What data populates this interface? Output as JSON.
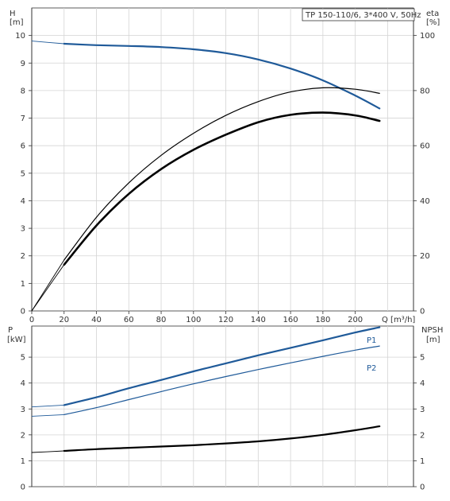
{
  "chart_data": [
    {
      "type": "line",
      "title": "TP 150-110/6, 3*400 V, 50Hz",
      "xlabel": "Q [m³/h]",
      "xlim": [
        0,
        236
      ],
      "xticks": [
        0,
        20,
        40,
        60,
        80,
        100,
        120,
        140,
        160,
        180,
        200
      ],
      "left_axis": {
        "label_top": "H",
        "label_unit": "[m]",
        "lim": [
          0,
          11
        ],
        "ticks": [
          0,
          1,
          2,
          3,
          4,
          5,
          6,
          7,
          8,
          9,
          10
        ]
      },
      "right_axis": {
        "label_top": "eta",
        "label_unit": "[%]",
        "lim": [
          0,
          110
        ],
        "ticks": [
          0,
          20,
          40,
          60,
          80,
          100
        ]
      },
      "grid": true,
      "series": [
        {
          "axis": "left",
          "color": "#1f5a99",
          "width": 2.2,
          "x": [
            0,
            20,
            40,
            60,
            80,
            100,
            120,
            140,
            160,
            180,
            200,
            215
          ],
          "y": [
            9.8,
            9.7,
            9.65,
            9.62,
            9.58,
            9.5,
            9.36,
            9.13,
            8.8,
            8.37,
            7.82,
            7.35
          ]
        },
        {
          "axis": "right",
          "color": "#000000",
          "width": 1.2,
          "x": [
            0,
            20,
            40,
            60,
            80,
            100,
            120,
            140,
            160,
            180,
            200,
            215
          ],
          "y": [
            0,
            18.5,
            34,
            46.5,
            56.5,
            64.5,
            71,
            76,
            79.5,
            81,
            80.5,
            79
          ]
        },
        {
          "axis": "right",
          "color": "#000000",
          "width": 2.6,
          "x": [
            0,
            20,
            40,
            60,
            80,
            100,
            120,
            140,
            160,
            180,
            200,
            215
          ],
          "y": [
            0,
            16.8,
            31,
            42.5,
            51.5,
            58.5,
            64,
            68.5,
            71.2,
            72,
            71,
            69
          ]
        }
      ]
    },
    {
      "type": "line",
      "xlim": [
        0,
        236
      ],
      "left_axis": {
        "label_top": "P",
        "label_unit": "[kW]",
        "lim": [
          0,
          6.2
        ],
        "ticks": [
          0,
          1,
          2,
          3,
          4,
          5
        ]
      },
      "right_axis": {
        "label_top": "NPSH",
        "label_unit": "[m]",
        "lim": [
          0,
          6.2
        ],
        "ticks": [
          0,
          1,
          2,
          3,
          4,
          5
        ]
      },
      "grid": true,
      "series": [
        {
          "name": "P1",
          "axis": "left",
          "color": "#1f5a99",
          "width": 2.2,
          "x": [
            0,
            20,
            40,
            60,
            80,
            100,
            120,
            140,
            160,
            180,
            200,
            215
          ],
          "y": [
            3.08,
            3.15,
            3.45,
            3.8,
            4.12,
            4.45,
            4.76,
            5.07,
            5.36,
            5.65,
            5.95,
            6.15
          ]
        },
        {
          "name": "P2",
          "axis": "left",
          "color": "#1f5a99",
          "width": 1.2,
          "x": [
            0,
            20,
            40,
            60,
            80,
            100,
            120,
            140,
            160,
            180,
            200,
            215
          ],
          "y": [
            2.72,
            2.78,
            3.05,
            3.36,
            3.67,
            3.97,
            4.25,
            4.52,
            4.78,
            5.03,
            5.27,
            5.43
          ]
        },
        {
          "axis": "right",
          "color": "#000000",
          "width": 2.2,
          "x": [
            0,
            20,
            40,
            60,
            80,
            100,
            120,
            140,
            160,
            180,
            200,
            215
          ],
          "y": [
            1.32,
            1.38,
            1.45,
            1.5,
            1.55,
            1.6,
            1.67,
            1.75,
            1.86,
            2.0,
            2.18,
            2.33
          ]
        }
      ]
    }
  ]
}
